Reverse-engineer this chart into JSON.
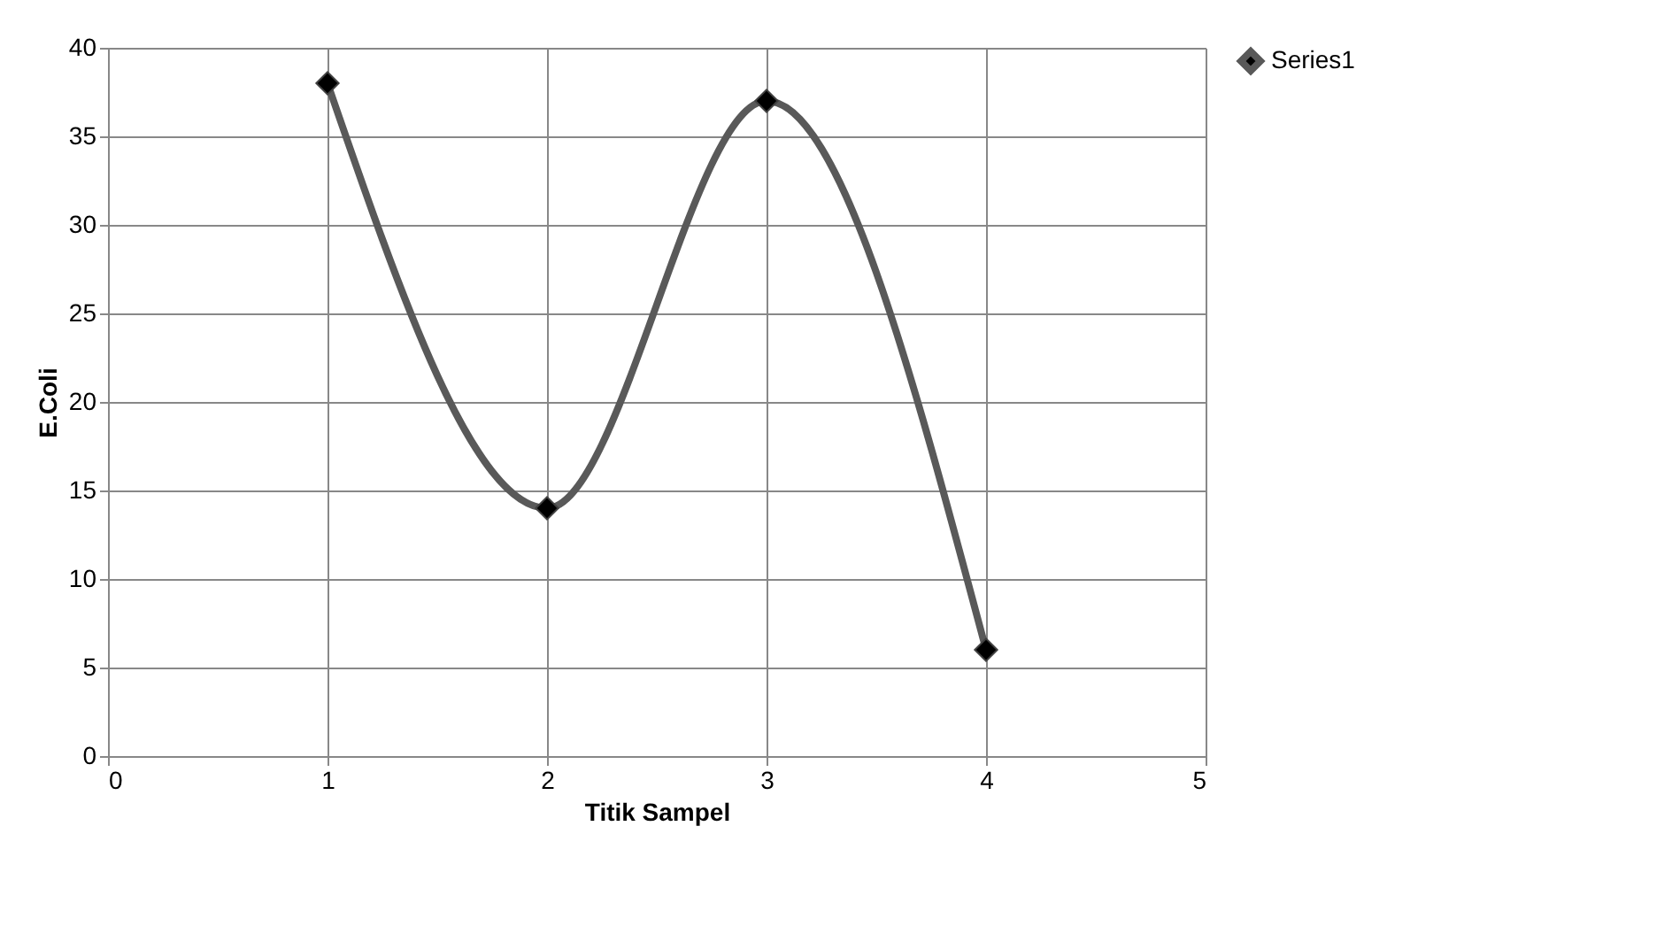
{
  "chart_data": {
    "type": "line",
    "xlabel": "Titik Sampel",
    "ylabel": "E.Coli",
    "x": [
      1,
      2,
      3,
      4
    ],
    "series": [
      {
        "name": "Series1",
        "color": "#595959",
        "values": [
          38,
          14,
          37,
          6
        ]
      }
    ],
    "marker": "diamond",
    "line_style": "solid",
    "xlim": [
      0,
      5
    ],
    "xticks": [
      0,
      1,
      2,
      3,
      4,
      5
    ],
    "ylim": [
      0,
      40
    ],
    "yticks": [
      0,
      5,
      10,
      15,
      20,
      25,
      30,
      35,
      40
    ],
    "grid": true,
    "legend": "right"
  }
}
